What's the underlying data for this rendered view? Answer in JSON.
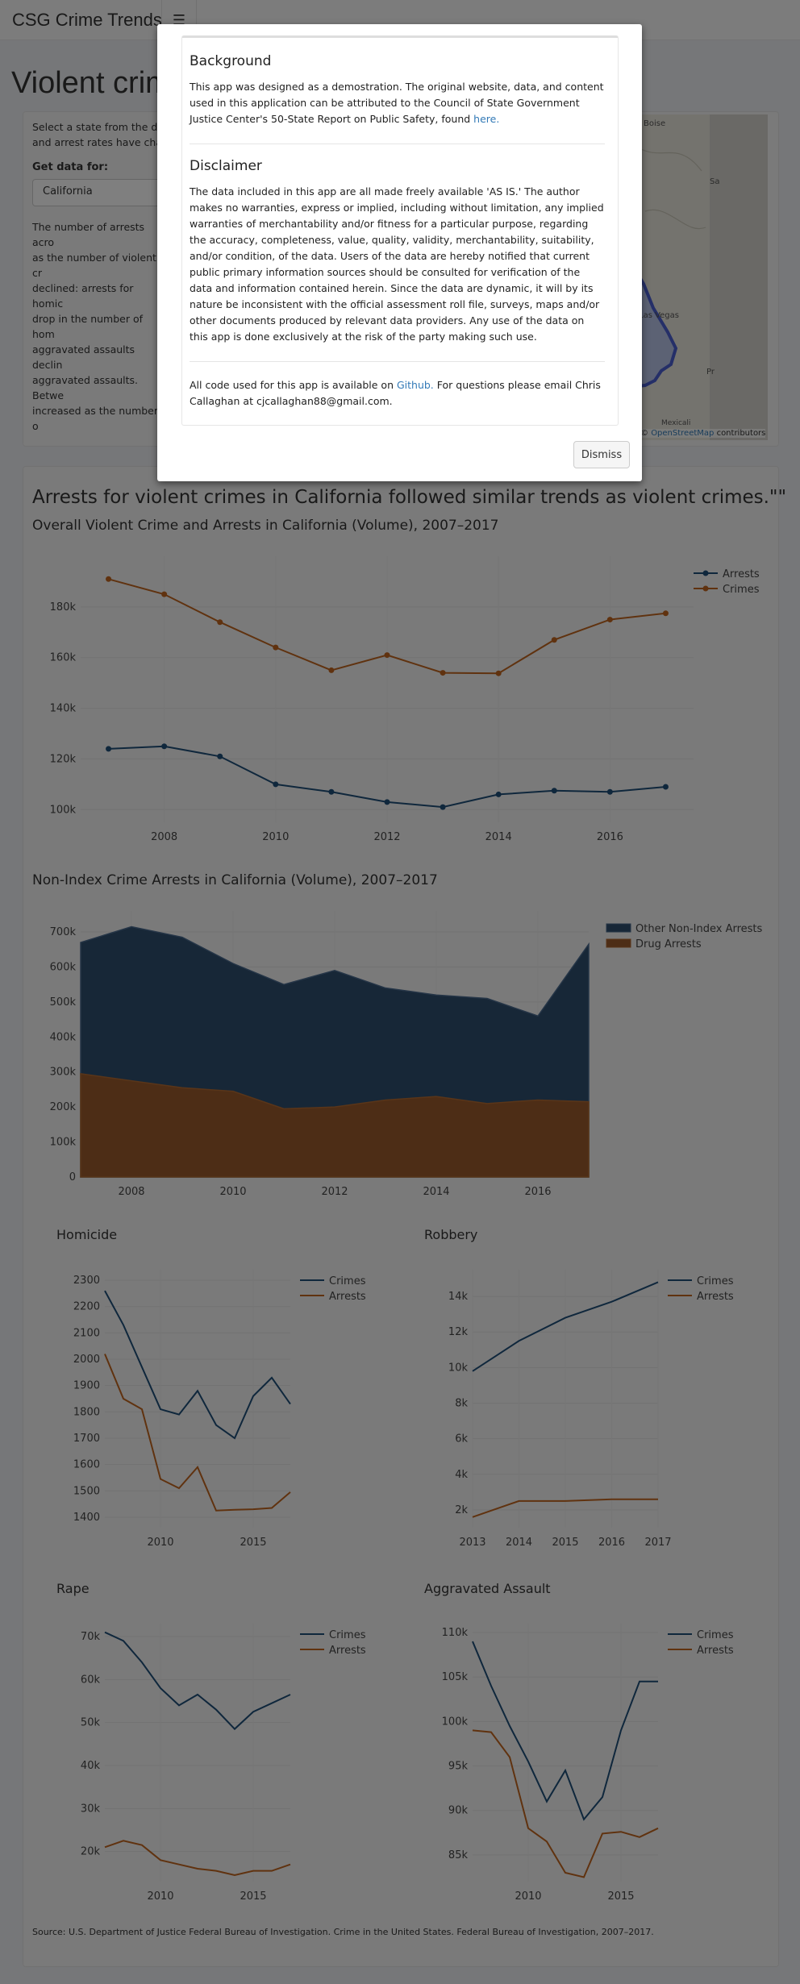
{
  "navbar": {
    "brand": "CSG Crime Trends",
    "menu_icon": "hamburger-icon"
  },
  "page": {
    "title": "Violent crim"
  },
  "sidebar": {
    "intro": "Select a state from the drop",
    "intro2": "and arrest rates have chan",
    "get_data_label": "Get data for:",
    "selected_state": "California",
    "body_lines": [
      "The number of arrests acro",
      "as the number of violent cr",
      "declined: arrests for homic",
      "drop in the number of hom",
      "aggravated assaults declin",
      "aggravated assaults. Betwe",
      "increased as the number o"
    ]
  },
  "map": {
    "labels": [
      "Boise",
      "Las Vegas",
      "Mexicali",
      "Pr",
      "Sa"
    ],
    "attribution_link": "OpenStreetMap",
    "attribution_suffix": " contributors"
  },
  "main": {
    "headline": "Arrests for violent crimes in California followed similar trends as violent crimes.\"\"",
    "chart1_title": "Overall Violent Crime and Arrests in California (Volume), 2007–2017",
    "chart2_title": "Non-Index Crime Arrests in California (Volume), 2007–2017",
    "source": "Source: U.S. Department of Justice Federal Bureau of Investigation. Crime in the United States. Federal Bureau of Investigation, 2007–2017."
  },
  "colors": {
    "blue": "#1f4e79",
    "orange": "#c0651e",
    "area_blue": "#2f4e6e",
    "area_orange": "#9a5a2d"
  },
  "chart_data": [
    {
      "type": "line",
      "title": "Overall Violent Crime and Arrests in California (Volume), 2007–2017",
      "x": [
        2007,
        2008,
        2009,
        2010,
        2011,
        2012,
        2013,
        2014,
        2015,
        2016,
        2017
      ],
      "ylim": [
        95000,
        200000
      ],
      "yticks": [
        "100k",
        "120k",
        "140k",
        "160k",
        "180k"
      ],
      "xticks": [
        "2008",
        "2010",
        "2012",
        "2014",
        "2016"
      ],
      "series": [
        {
          "name": "Arrests",
          "values": [
            124000,
            125000,
            121000,
            110000,
            107000,
            103000,
            101000,
            106000,
            107500,
            107000,
            109000
          ]
        },
        {
          "name": "Crimes",
          "values": [
            191000,
            185000,
            174000,
            164000,
            155000,
            161000,
            154000,
            153800,
            167000,
            175000,
            177500
          ]
        }
      ],
      "legend": "top-right"
    },
    {
      "type": "area",
      "title": "Non-Index Crime Arrests in California (Volume), 2007–2017",
      "x": [
        2007,
        2008,
        2009,
        2010,
        2011,
        2012,
        2013,
        2014,
        2015,
        2016,
        2017
      ],
      "ylim": [
        0,
        760000
      ],
      "yticks": [
        "0",
        "100k",
        "200k",
        "300k",
        "400k",
        "500k",
        "600k",
        "700k"
      ],
      "xticks": [
        "2008",
        "2010",
        "2012",
        "2014",
        "2016"
      ],
      "series": [
        {
          "name": "Other Non-Index Arrests",
          "values": [
            670000,
            715000,
            685000,
            610000,
            550000,
            590000,
            540000,
            520000,
            510000,
            460000,
            665000
          ]
        },
        {
          "name": "Drug Arrests",
          "values": [
            295000,
            275000,
            255000,
            245000,
            195000,
            200000,
            220000,
            230000,
            210000,
            220000,
            215000
          ]
        }
      ],
      "legend": "top-right"
    },
    {
      "type": "line",
      "title": "Homicide",
      "x": [
        2007,
        2008,
        2009,
        2010,
        2011,
        2012,
        2013,
        2014,
        2015,
        2016,
        2017
      ],
      "ylim": [
        1360,
        2340
      ],
      "yticks": [
        "1400",
        "1500",
        "1600",
        "1700",
        "1800",
        "1900",
        "2000",
        "2100",
        "2200",
        "2300"
      ],
      "xticks": [
        "2010",
        "2015"
      ],
      "series": [
        {
          "name": "Crimes",
          "values": [
            2260,
            2130,
            1970,
            1810,
            1790,
            1880,
            1750,
            1700,
            1860,
            1930,
            1830
          ]
        },
        {
          "name": "Arrests",
          "values": [
            2020,
            1850,
            1810,
            1545,
            1510,
            1590,
            1425,
            1428,
            1430,
            1435,
            1495
          ]
        }
      ],
      "legend": "top-right"
    },
    {
      "type": "line",
      "title": "Robbery",
      "x": [
        2013,
        2014,
        2015,
        2016,
        2017
      ],
      "ylim": [
        1000,
        15500
      ],
      "yticks": [
        "2k",
        "4k",
        "6k",
        "8k",
        "10k",
        "12k",
        "14k"
      ],
      "xticks": [
        "2013",
        "2014",
        "2015",
        "2016",
        "2017"
      ],
      "series": [
        {
          "name": "Crimes",
          "values": [
            9800,
            11500,
            12800,
            13700,
            14800
          ]
        },
        {
          "name": "Arrests",
          "values": [
            1600,
            2500,
            2500,
            2600,
            2600
          ]
        }
      ],
      "legend": "top-right"
    },
    {
      "type": "line",
      "title": "Rape",
      "x": [
        2007,
        2008,
        2009,
        2010,
        2011,
        2012,
        2013,
        2014,
        2015,
        2016,
        2017
      ],
      "ylim": [
        13000,
        73000
      ],
      "yticks": [
        "20k",
        "30k",
        "40k",
        "50k",
        "60k",
        "70k"
      ],
      "xticks": [
        "2010",
        "2015"
      ],
      "series": [
        {
          "name": "Crimes",
          "values": [
            71000,
            69000,
            64000,
            58000,
            54000,
            56500,
            53000,
            48500,
            52500,
            54500,
            56500
          ]
        },
        {
          "name": "Arrests",
          "values": [
            21000,
            22500,
            21500,
            18000,
            17000,
            16000,
            15500,
            14500,
            15500,
            15500,
            17000
          ]
        }
      ],
      "legend": "top-right"
    },
    {
      "type": "line",
      "title": "Aggravated Assault",
      "x": [
        2007,
        2008,
        2009,
        2010,
        2011,
        2012,
        2013,
        2014,
        2015,
        2016,
        2017
      ],
      "ylim": [
        82000,
        111000
      ],
      "yticks": [
        "85k",
        "90k",
        "95k",
        "100k",
        "105k",
        "110k"
      ],
      "xticks": [
        "2010",
        "2015"
      ],
      "series": [
        {
          "name": "Crimes",
          "values": [
            109000,
            104000,
            99500,
            95500,
            91000,
            94500,
            89000,
            91500,
            99000,
            104500,
            104500
          ]
        },
        {
          "name": "Arrests",
          "values": [
            99000,
            98800,
            96000,
            88000,
            86500,
            83000,
            82500,
            87400,
            87600,
            87000,
            88000
          ]
        }
      ],
      "legend": "top-right"
    }
  ],
  "modal": {
    "bg_title": "Background",
    "bg_text_1": "This app was designed as a demostration. The original website, data, and content used in this application can be attributed to the Council of State Government Justice Center's 50-State Report on Public Safety, found ",
    "bg_link": "here.",
    "disc_title": "Disclaimer",
    "disc_text": "The data included in this app are all made freely available 'AS IS.' The author makes no warranties, express or implied, including without limitation, any implied warranties of merchantability and/or fitness for a particular purpose, regarding the accuracy, completeness, value, quality, validity, merchantability, suitability, and/or condition, of the data. Users of the data are hereby notified that current public primary information sources should be consulted for verification of the data and information contained herein. Since the data are dynamic, it will by its nature be inconsistent with the official assessment roll file, surveys, maps and/or other documents produced by relevant data providers. Any use of the data on this app is done exclusively at the risk of the party making such use.",
    "code_text_1": "All code used for this app is available on ",
    "code_link": "Github.",
    "code_text_2": " For questions please email Chris Callaghan at cjcallaghan88@gmail.com.",
    "dismiss": "Dismiss"
  }
}
